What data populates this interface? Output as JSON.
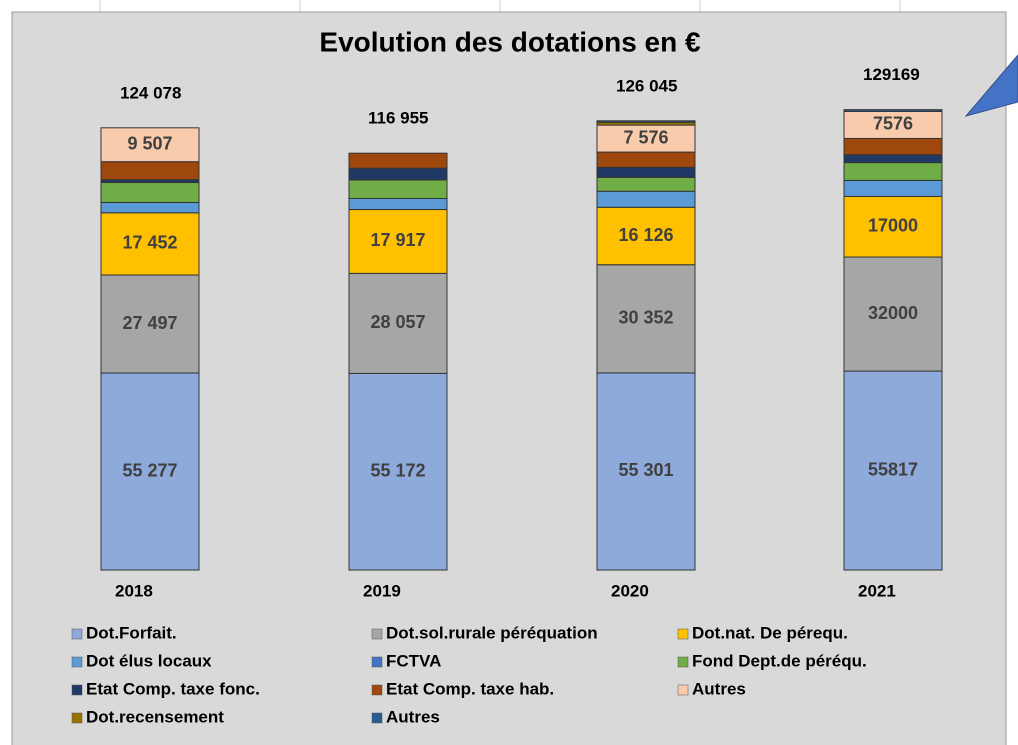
{
  "chart_data": {
    "type": "stacked_bar",
    "title": "Evolution des dotations en €",
    "categories": [
      "2018",
      "2019",
      "2020",
      "2021"
    ],
    "totals": [
      124078,
      116955,
      126045,
      129169
    ],
    "total_labels": [
      "124  078",
      "116 955",
      "126 045",
      "129169"
    ],
    "series": [
      {
        "name": "Dot.Forfait.",
        "color": "#8eaadb",
        "values": [
          55277,
          55172,
          55301,
          55817
        ],
        "value_labels": [
          "55 277",
          "55 172",
          "55 301",
          "55817"
        ]
      },
      {
        "name": "Dot.sol.rurale péréquation",
        "color": "#a6a6a6",
        "values": [
          27497,
          28057,
          30352,
          32000
        ],
        "value_labels": [
          "27 497",
          "28 057",
          "30 352",
          "32000"
        ]
      },
      {
        "name": "Dot.nat. De pérequ.",
        "color": "#ffc000",
        "values": [
          17452,
          17917,
          16126,
          17000
        ],
        "value_labels": [
          "17 452",
          "17 917",
          "16 126",
          "17000"
        ]
      },
      {
        "name": "Dot élus locaux",
        "color": "#5b9bd5",
        "values": [
          2900,
          3100,
          4500,
          4500
        ]
      },
      {
        "name": "FCTVA",
        "color": "#4472c4",
        "values": [
          0,
          0,
          0,
          0
        ]
      },
      {
        "name": "Fond Dept.de péréqu.",
        "color": "#70ad47",
        "values": [
          5600,
          5200,
          3900,
          5000
        ]
      },
      {
        "name": "Etat Comp. taxe fonc.",
        "color": "#203864",
        "values": [
          800,
          3300,
          2800,
          2200
        ]
      },
      {
        "name": "Etat Comp. taxe hab.",
        "color": "#9e480e",
        "values": [
          5045,
          4209,
          4290,
          4576
        ]
      },
      {
        "name": "Autres",
        "color": "#f8cbad",
        "values": [
          9507,
          null,
          7576,
          7576
        ],
        "value_labels": [
          "9 507",
          null,
          "7 576",
          "7576"
        ]
      },
      {
        "name": "Dot.recensement",
        "color": "#997300",
        "values": [
          0,
          0,
          800,
          0
        ]
      },
      {
        "name": "Autres",
        "color": "#255e91",
        "values": [
          0,
          0,
          400,
          500
        ]
      }
    ]
  }
}
